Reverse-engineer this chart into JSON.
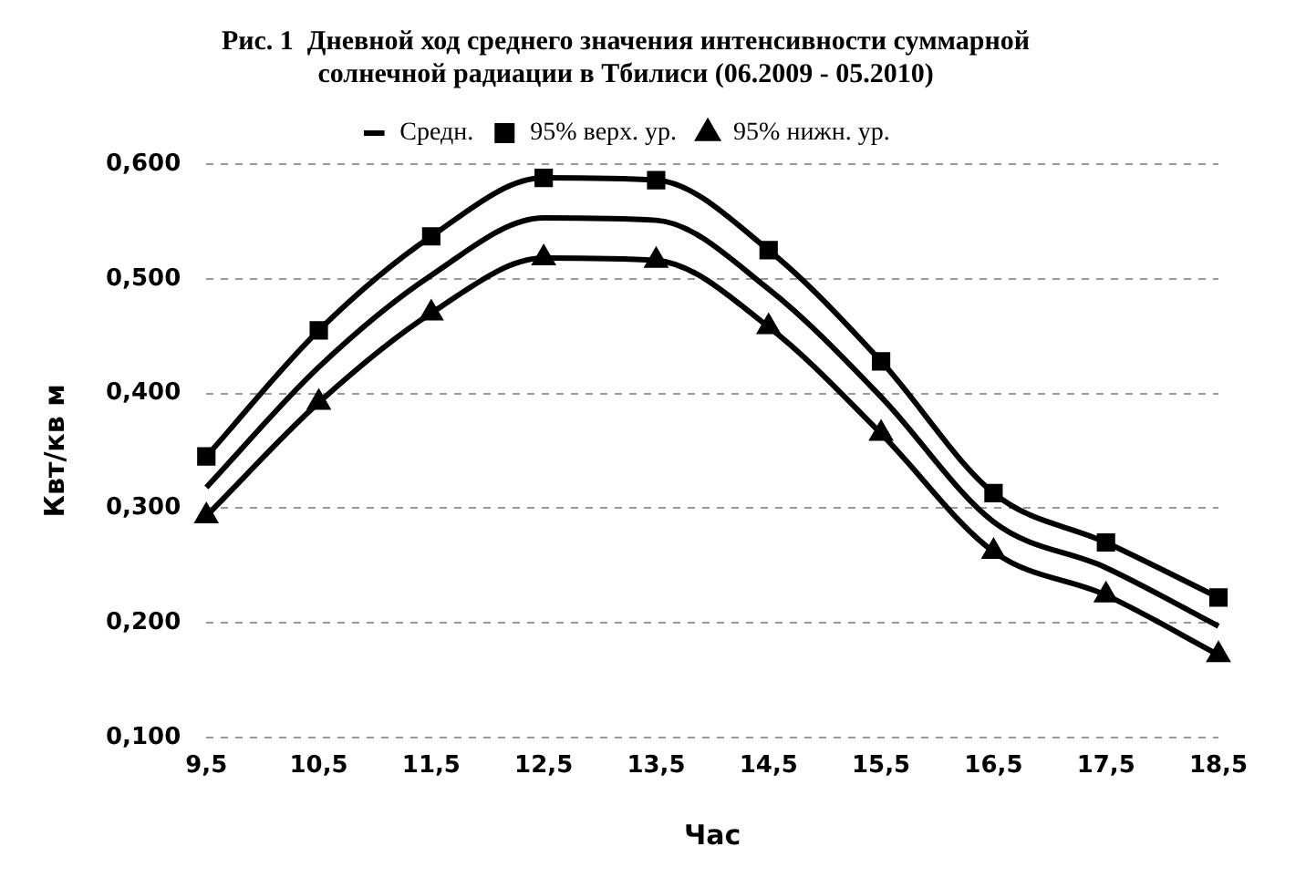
{
  "chart_data": {
    "type": "line",
    "title": "Рис. 1  Дневной ход среднего значения интенсивности суммарной солнечной радиации в Тбилиси (06.2009 - 05.2010)",
    "xlabel": "Час",
    "ylabel": "Квт/кв м",
    "categories": [
      "9,5",
      "10,5",
      "11,5",
      "12,5",
      "13,5",
      "14,5",
      "15,5",
      "16,5",
      "17,5",
      "18,5"
    ],
    "series": [
      {
        "name": "Средн.",
        "color": "#000000",
        "marker": "none",
        "values": [
          0.318,
          0.423,
          0.503,
          0.553,
          0.551,
          0.491,
          0.397,
          0.288,
          0.248,
          0.197
        ]
      },
      {
        "name": "95% верх. ур.",
        "color": "#000000",
        "marker": "square",
        "values": [
          0.345,
          0.455,
          0.537,
          0.588,
          0.586,
          0.525,
          0.428,
          0.313,
          0.27,
          0.222
        ]
      },
      {
        "name": "95% нижн. ур.",
        "color": "#000000",
        "marker": "triangle",
        "values": [
          0.293,
          0.392,
          0.47,
          0.518,
          0.516,
          0.458,
          0.365,
          0.262,
          0.224,
          0.172
        ]
      }
    ],
    "ylim": [
      0.1,
      0.6
    ],
    "yticks": [
      {
        "value": 0.1,
        "label": "0,100"
      },
      {
        "value": 0.2,
        "label": "0,200"
      },
      {
        "value": 0.3,
        "label": "0,300"
      },
      {
        "value": 0.4,
        "label": "0,400"
      },
      {
        "value": 0.5,
        "label": "0,500"
      },
      {
        "value": 0.6,
        "label": "0,600"
      }
    ],
    "grid": "y",
    "legend": "top"
  }
}
